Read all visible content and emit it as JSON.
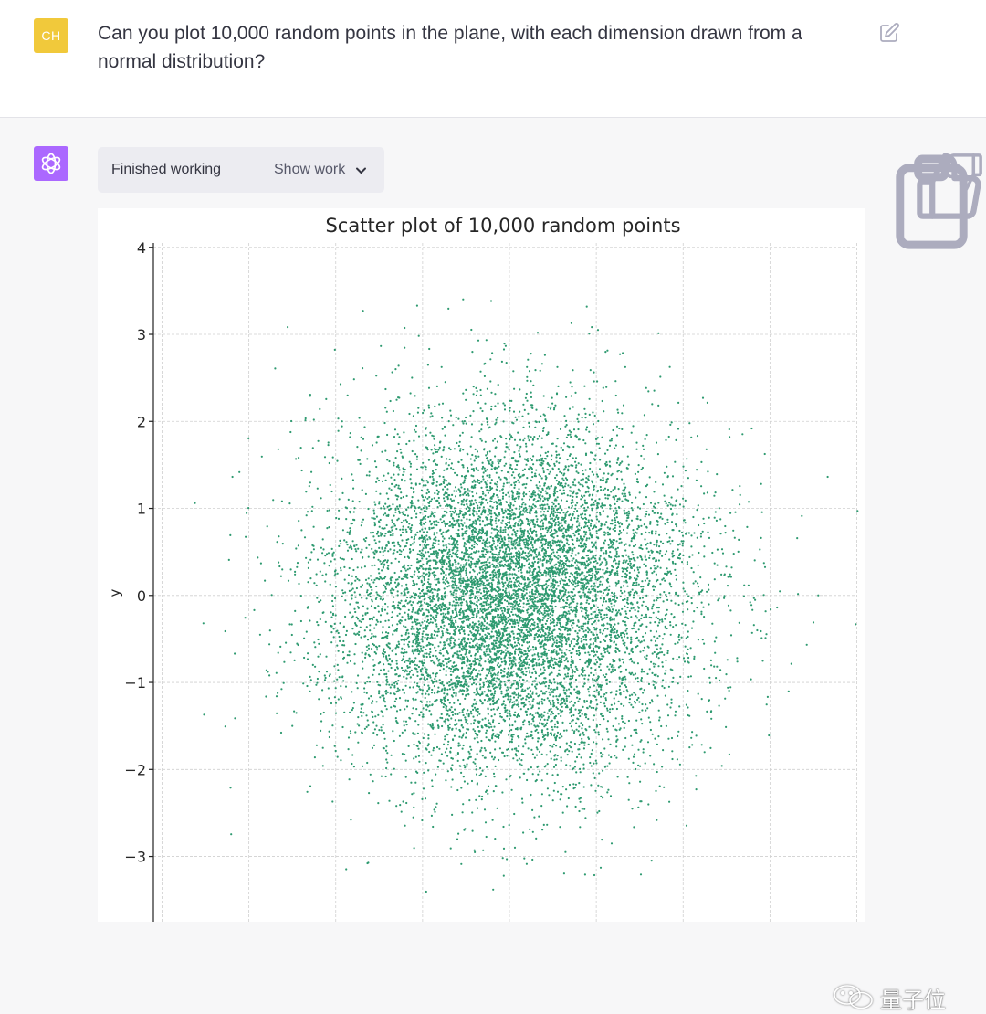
{
  "user": {
    "avatar_initials": "CH",
    "message": "Can you plot 10,000 random points in the plane, with each dimension drawn from a normal distribution?"
  },
  "assistant": {
    "status_label": "Finished working",
    "show_work_label": "Show work"
  },
  "icons": {
    "edit": "edit-icon",
    "copy": "clipboard-icon",
    "like": "thumbs-up-icon",
    "dislike": "thumbs-down-icon",
    "expand": "chevron-down-icon",
    "assistant_avatar": "openai-logo-icon"
  },
  "colors": {
    "user_avatar": "#f1c93b",
    "assistant_avatar": "#ab68ff",
    "points": "#2e9a70"
  },
  "watermark": "量子位",
  "chart_data": {
    "type": "scatter",
    "title": "Scatter plot of 10,000 random points",
    "ylabel": "y",
    "xlabel": "",
    "n_points": 10000,
    "distribution": "standard normal in each dimension",
    "point_color": "#2e9a70",
    "grid": true,
    "yticks": [
      4,
      3,
      2,
      1,
      0,
      -1,
      -2,
      -3
    ],
    "ytick_labels": [
      "4",
      "3",
      "2",
      "1",
      "0",
      "−1",
      "−2",
      "−3"
    ],
    "ylim": [
      -3.75,
      4.05
    ],
    "xlim": [
      -4.1,
      4.1
    ],
    "xgrid": [
      -4,
      -3,
      -2,
      -1,
      0,
      1,
      2,
      3,
      4
    ]
  }
}
